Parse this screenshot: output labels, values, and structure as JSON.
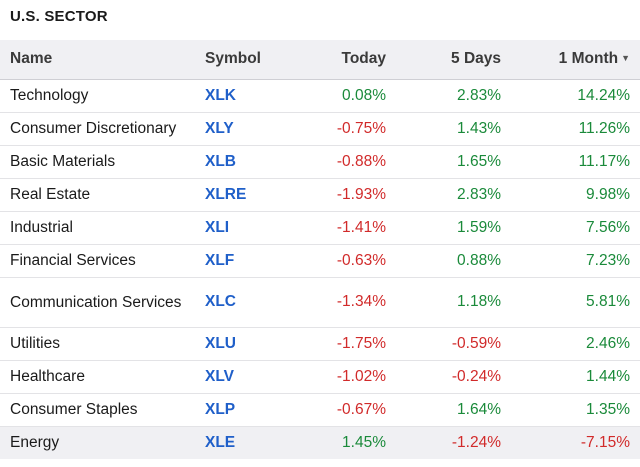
{
  "title": "U.S. SECTOR",
  "colors": {
    "positive": "#1a8a3a",
    "negative": "#d12a2a",
    "symbol": "#1f5fc9"
  },
  "columns": {
    "name": "Name",
    "symbol": "Symbol",
    "today": "Today",
    "five_days": "5 Days",
    "one_month": "1 Month"
  },
  "rows": [
    {
      "name": "Technology",
      "symbol": "XLK",
      "today": "0.08%",
      "five_days": "2.83%",
      "one_month": "14.24%"
    },
    {
      "name": "Consumer Discretionary",
      "symbol": "XLY",
      "today": "-0.75%",
      "five_days": "1.43%",
      "one_month": "11.26%"
    },
    {
      "name": "Basic Materials",
      "symbol": "XLB",
      "today": "-0.88%",
      "five_days": "1.65%",
      "one_month": "11.17%"
    },
    {
      "name": "Real Estate",
      "symbol": "XLRE",
      "today": "-1.93%",
      "five_days": "2.83%",
      "one_month": "9.98%"
    },
    {
      "name": "Industrial",
      "symbol": "XLI",
      "today": "-1.41%",
      "five_days": "1.59%",
      "one_month": "7.56%"
    },
    {
      "name": "Financial Services",
      "symbol": "XLF",
      "today": "-0.63%",
      "five_days": "0.88%",
      "one_month": "7.23%"
    },
    {
      "name": "Communication Services",
      "symbol": "XLC",
      "today": "-1.34%",
      "five_days": "1.18%",
      "one_month": "5.81%"
    },
    {
      "name": "Utilities",
      "symbol": "XLU",
      "today": "-1.75%",
      "five_days": "-0.59%",
      "one_month": "2.46%"
    },
    {
      "name": "Healthcare",
      "symbol": "XLV",
      "today": "-1.02%",
      "five_days": "-0.24%",
      "one_month": "1.44%"
    },
    {
      "name": "Consumer Staples",
      "symbol": "XLP",
      "today": "-0.67%",
      "five_days": "1.64%",
      "one_month": "1.35%"
    },
    {
      "name": "Energy",
      "symbol": "XLE",
      "today": "1.45%",
      "five_days": "-1.24%",
      "one_month": "-7.15%"
    }
  ]
}
